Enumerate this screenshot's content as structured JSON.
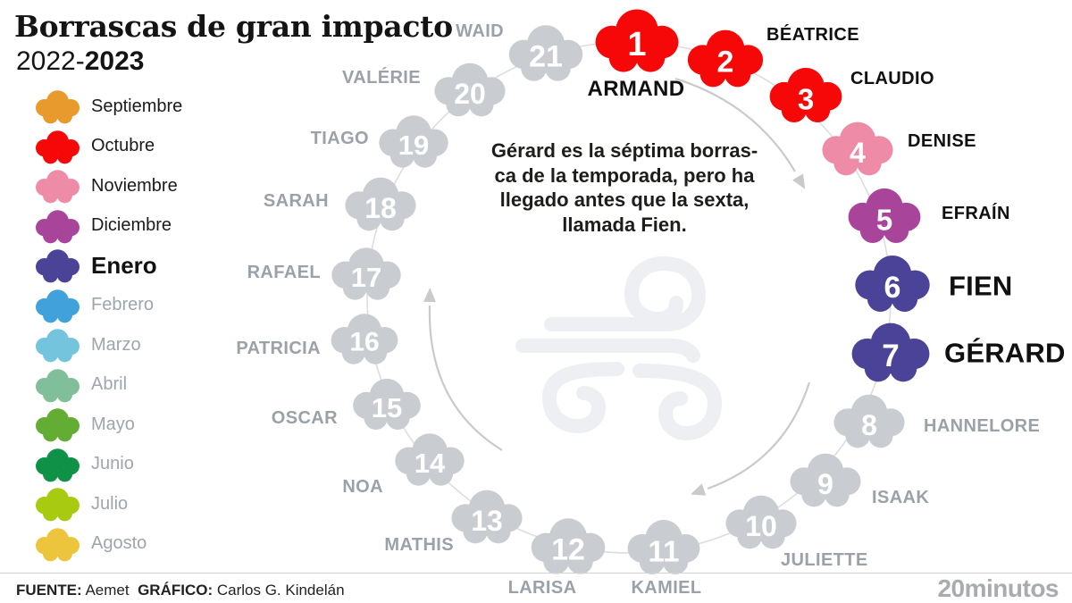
{
  "header": {
    "title": "Borrascas de gran impacto",
    "season_prefix": "2022-",
    "season_bold": "2023"
  },
  "legend": {
    "items": [
      {
        "label": "Septiembre",
        "color": "#E99A2C",
        "active": true,
        "emphasis": false
      },
      {
        "label": "Octubre",
        "color": "#F70808",
        "active": true,
        "emphasis": false
      },
      {
        "label": "Noviembre",
        "color": "#EE8CA8",
        "active": true,
        "emphasis": false
      },
      {
        "label": "Diciembre",
        "color": "#A8459B",
        "active": true,
        "emphasis": false
      },
      {
        "label": "Enero",
        "color": "#4A4397",
        "active": true,
        "emphasis": true
      },
      {
        "label": "Febrero",
        "color": "#41A1DB",
        "active": false,
        "emphasis": false
      },
      {
        "label": "Marzo",
        "color": "#74C4DE",
        "active": false,
        "emphasis": false
      },
      {
        "label": "Abril",
        "color": "#80BF99",
        "active": false,
        "emphasis": false
      },
      {
        "label": "Mayo",
        "color": "#64AD35",
        "active": false,
        "emphasis": false
      },
      {
        "label": "Junio",
        "color": "#0F9148",
        "active": false,
        "emphasis": false
      },
      {
        "label": "Julio",
        "color": "#A8CA10",
        "active": false,
        "emphasis": false
      },
      {
        "label": "Agosto",
        "color": "#EDC53C",
        "active": false,
        "emphasis": false
      }
    ]
  },
  "annotation": {
    "lines": [
      "Gérard es la séptima borras-",
      "ca de la temporada, pero ha",
      "llegado antes que la sexta,",
      "llamada Fien."
    ]
  },
  "storms": [
    {
      "number": 1,
      "name": "ARMAND",
      "color": "#F70808",
      "month": "Octubre",
      "label_style": "armand"
    },
    {
      "number": 2,
      "name": "BÉATRICE",
      "color": "#F70808",
      "month": "Octubre",
      "label_style": "black"
    },
    {
      "number": 3,
      "name": "CLAUDIO",
      "color": "#F70808",
      "month": "Octubre",
      "label_style": "black"
    },
    {
      "number": 4,
      "name": "DENISE",
      "color": "#EE8CA8",
      "month": "Noviembre",
      "label_style": "black"
    },
    {
      "number": 5,
      "name": "EFRAÍN",
      "color": "#A8459B",
      "month": "Diciembre",
      "label_style": "black"
    },
    {
      "number": 6,
      "name": "FIEN",
      "color": "#4A4397",
      "month": "Enero",
      "label_style": "big"
    },
    {
      "number": 7,
      "name": "GÉRARD",
      "color": "#4A4397",
      "month": "Enero",
      "label_style": "big"
    },
    {
      "number": 8,
      "name": "HANNELORE",
      "color": "#C9CDD2",
      "month": null,
      "label_style": "gray"
    },
    {
      "number": 9,
      "name": "ISAAK",
      "color": "#C9CDD2",
      "month": null,
      "label_style": "gray"
    },
    {
      "number": 10,
      "name": "JULIETTE",
      "color": "#C9CDD2",
      "month": null,
      "label_style": "gray"
    },
    {
      "number": 11,
      "name": "KAMIEL",
      "color": "#C9CDD2",
      "month": null,
      "label_style": "gray"
    },
    {
      "number": 12,
      "name": "LARISA",
      "color": "#C9CDD2",
      "month": null,
      "label_style": "gray"
    },
    {
      "number": 13,
      "name": "MATHIS",
      "color": "#C9CDD2",
      "month": null,
      "label_style": "gray"
    },
    {
      "number": 14,
      "name": "NOA",
      "color": "#C9CDD2",
      "month": null,
      "label_style": "gray"
    },
    {
      "number": 15,
      "name": "OSCAR",
      "color": "#C9CDD2",
      "month": null,
      "label_style": "gray"
    },
    {
      "number": 16,
      "name": "PATRICIA",
      "color": "#C9CDD2",
      "month": null,
      "label_style": "gray"
    },
    {
      "number": 17,
      "name": "RAFAEL",
      "color": "#C9CDD2",
      "month": null,
      "label_style": "gray"
    },
    {
      "number": 18,
      "name": "SARAH",
      "color": "#C9CDD2",
      "month": null,
      "label_style": "gray"
    },
    {
      "number": 19,
      "name": "TIAGO",
      "color": "#C9CDD2",
      "month": null,
      "label_style": "gray"
    },
    {
      "number": 20,
      "name": "VALÉRIE",
      "color": "#C9CDD2",
      "month": null,
      "label_style": "gray"
    },
    {
      "number": 21,
      "name": "WAID",
      "color": "#C9CDD2",
      "month": null,
      "label_style": "gray"
    }
  ],
  "icons": {
    "center": "wind-icon",
    "direction": "clockwise-arrows"
  },
  "colors": {
    "gray_cloud": "#C9CDD2",
    "gray_text": "#9BA1A9",
    "ring_line": "#DBDDE0",
    "arrow": "#C8CACD",
    "wind_icon": "#EDEFF2"
  },
  "footer": {
    "source_label": "FUENTE:",
    "source_value": "Aemet",
    "credit_label": "GRÁFICO:",
    "credit_value": "Carlos G. Kindelán",
    "brand": "20minutos"
  }
}
